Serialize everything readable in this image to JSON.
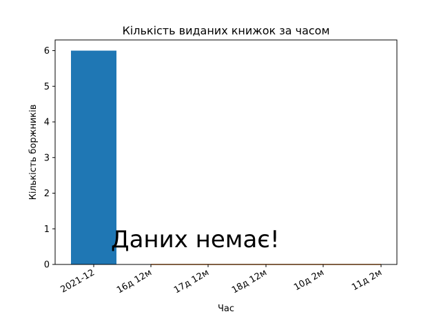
{
  "chart_data": {
    "type": "bar",
    "title": "Кількість виданих книжок за часом",
    "xlabel": "Час",
    "ylabel": "Кількість боржників",
    "ylim": [
      0,
      6.3
    ],
    "yticks": [
      0,
      1,
      2,
      3,
      4,
      5,
      6
    ],
    "categories": [
      "2021-12",
      "16д 12м",
      "17д 12м",
      "18д 12м",
      "10д 2м",
      "11д 2м"
    ],
    "series": [
      {
        "values": [
          6,
          null,
          null,
          null,
          null,
          null
        ],
        "color": "#1f77b4",
        "kind": "bar"
      },
      {
        "values": [
          null,
          0,
          0,
          0,
          0,
          0
        ],
        "color": "#ff7f0e",
        "kind": "line"
      }
    ],
    "annotation": "Даних немає!",
    "grid": false,
    "legend": "none"
  }
}
